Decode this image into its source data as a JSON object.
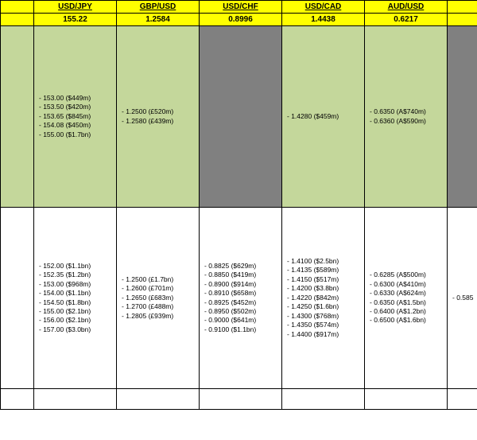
{
  "colors": {
    "header_bg": "#ffff00",
    "green_bg": "#c4d79b",
    "grey_bg": "#808080",
    "white_bg": "#ffffff",
    "border": "#000000"
  },
  "columns": [
    {
      "pair": "USD/JPY",
      "rate": "155.22"
    },
    {
      "pair": "GBP/USD",
      "rate": "1.2584"
    },
    {
      "pair": "USD/CHF",
      "rate": "0.8996"
    },
    {
      "pair": "USD/CAD",
      "rate": "1.4438"
    },
    {
      "pair": "AUD/USD",
      "rate": "0.6217"
    }
  ],
  "green_row": {
    "cells": [
      {
        "grey": false,
        "entries": [
          "153.00 ($449m)",
          "153.50 ($420m)",
          "153.65 ($845m)",
          "154.08 ($450m)",
          "155.00 ($1.7bn)"
        ]
      },
      {
        "grey": false,
        "entries": [
          "1.2500 (£520m)",
          "1.2580 (£439m)"
        ]
      },
      {
        "grey": true,
        "entries": []
      },
      {
        "grey": false,
        "entries": [
          "1.4280 ($459m)"
        ]
      },
      {
        "grey": false,
        "entries": [
          "0.6350 (A$740m)",
          "0.6360 (A$590m)"
        ]
      }
    ],
    "left_sliver_grey": false,
    "right_sliver_grey": true
  },
  "white_row": {
    "cells": [
      {
        "entries": [
          "152.00 ($1.1bn)",
          "152.35 ($1.2bn)",
          "153.00 ($968m)",
          "154.00 ($1.1bn)",
          "154.50 ($1.8bn)",
          "155.00 ($2.1bn)",
          "156.00 ($2.1bn)",
          "157.00 ($3.0bn)"
        ]
      },
      {
        "entries": [
          "1.2500 (£1.7bn)",
          "1.2600 (£701m)",
          "1.2650 (£683m)",
          "1.2700 (£488m)",
          "1.2805 (£939m)"
        ]
      },
      {
        "entries": [
          "0.8825 ($629m)",
          "0.8850 ($419m)",
          "0.8900 ($914m)",
          "0.8910 ($658m)",
          "0.8925 ($452m)",
          "0.8950 ($502m)",
          "0.9000 ($641m)",
          "0.9100 ($1.1bn)"
        ]
      },
      {
        "entries": [
          "1.4100 ($2.5bn)",
          "1.4135 ($589m)",
          "1.4150 ($517m)",
          "1.4200 ($3.8bn)",
          "1.4220 ($842m)",
          "1.4250 ($1.6bn)",
          "1.4300 ($768m)",
          "1.4350 ($574m)",
          "1.4400 ($917m)"
        ]
      },
      {
        "entries": [
          "0.6285 (A$500m)",
          "0.6300 (A$410m)",
          "0.6330 (A$624m)",
          "0.6350 (A$1.5bn)",
          "0.6400 (A$1.2bn)",
          "0.6500 (A$1.6bn)"
        ]
      }
    ],
    "right_sliver_entries": [
      "0.585"
    ]
  }
}
